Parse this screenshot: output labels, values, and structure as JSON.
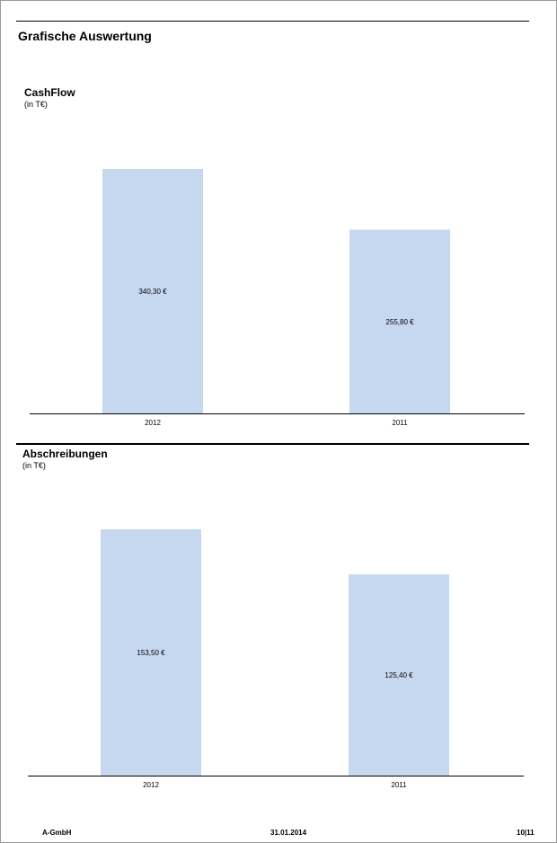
{
  "page_title": "Grafische Auswertung",
  "footer": {
    "company": "A-GmbH",
    "date": "31.01.2014",
    "page": "10|11"
  },
  "chart_data": [
    {
      "type": "bar",
      "title": "CashFlow",
      "subtitle": "(in T€)",
      "categories": [
        "2012",
        "2011"
      ],
      "values": [
        340.3,
        255.8
      ],
      "value_labels": [
        "340,30 €",
        "255,80 €"
      ],
      "ylim": [
        0,
        340.3
      ],
      "bar_color": "#c6d8ef",
      "grid": false
    },
    {
      "type": "bar",
      "title": "Abschreibungen",
      "subtitle": "(in T€)",
      "categories": [
        "2012",
        "2011"
      ],
      "values": [
        153.5,
        125.4
      ],
      "value_labels": [
        "153,50 €",
        "125,40 €"
      ],
      "ylim": [
        0,
        153.5
      ],
      "bar_color": "#c6d8ef",
      "grid": false
    }
  ]
}
